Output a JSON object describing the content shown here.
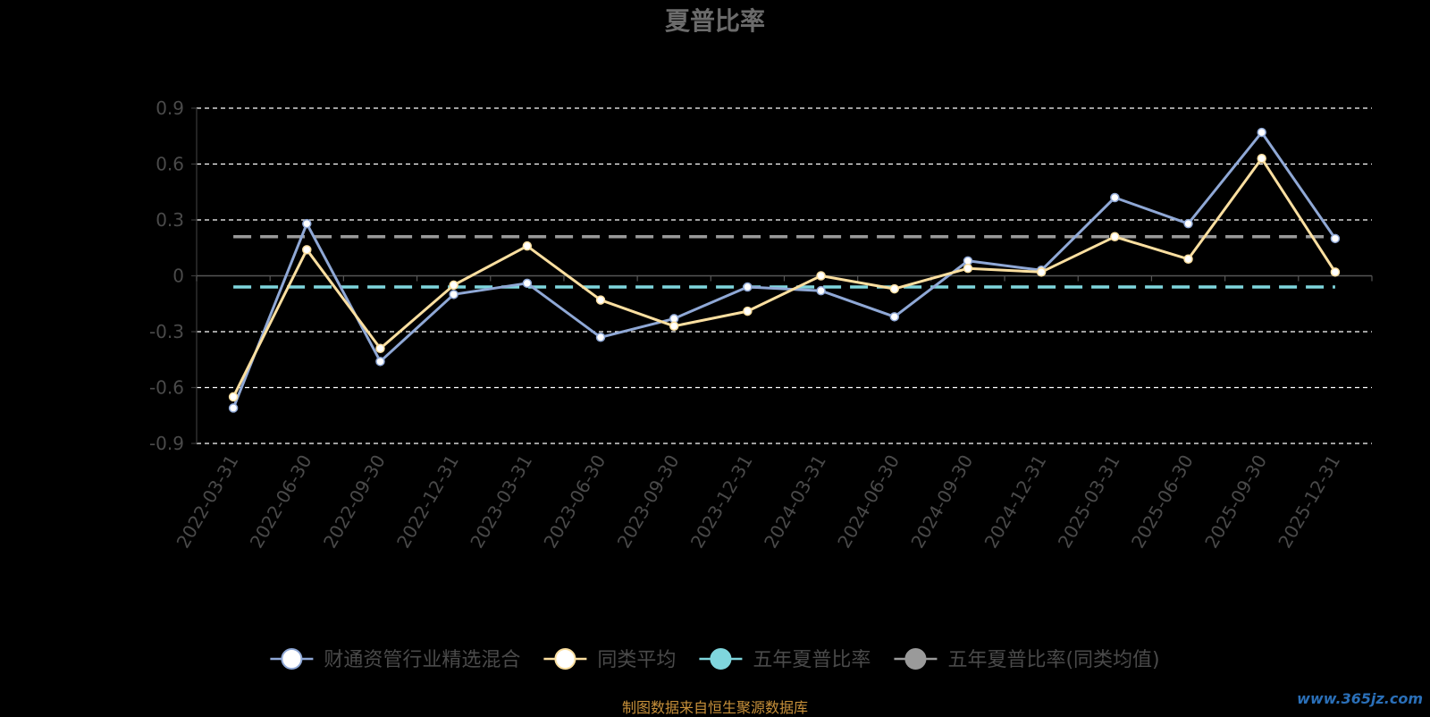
{
  "chart_data": {
    "type": "line",
    "title": "夏普比率",
    "categories": [
      "2022-03-31",
      "2022-06-30",
      "2022-09-30",
      "2022-12-31",
      "2023-03-31",
      "2023-06-30",
      "2023-09-30",
      "2023-12-31",
      "2024-03-31",
      "2024-06-30",
      "2024-09-30",
      "2024-12-31",
      "2025-03-31",
      "2025-06-30",
      "2025-09-30",
      "2025-12-31"
    ],
    "y_ticks": [
      "0.9",
      "0.6",
      "0.3",
      "0",
      "-0.3",
      "-0.6",
      "-0.9"
    ],
    "ylim": [
      -0.9,
      0.9
    ],
    "grid": true,
    "legend_position": "bottom",
    "series": [
      {
        "name": "财通资管行业精选混合",
        "color": "#8fa8d6",
        "marker_fill": "#ffffff",
        "values": [
          -0.71,
          0.28,
          -0.46,
          -0.1,
          -0.04,
          -0.33,
          -0.23,
          -0.06,
          -0.08,
          -0.22,
          0.08,
          0.03,
          0.42,
          0.28,
          0.77,
          0.2
        ]
      },
      {
        "name": "同类平均",
        "color": "#fbdfa0",
        "marker_fill": "#ffffff",
        "values": [
          -0.65,
          0.14,
          -0.39,
          -0.05,
          0.16,
          -0.13,
          -0.27,
          -0.19,
          0.0,
          -0.07,
          0.04,
          0.02,
          0.21,
          0.09,
          0.63,
          0.02
        ]
      },
      {
        "name": "五年夏普比率",
        "color": "#7fd6dd",
        "dashed": true,
        "constant": -0.06
      },
      {
        "name": "五年夏普比率(同类均值)",
        "color": "#9a9a9a",
        "dashed": true,
        "constant": 0.21
      }
    ]
  },
  "footer": {
    "source": "制图数据来自恒生聚源数据库",
    "watermark": "www.365jz.com"
  }
}
